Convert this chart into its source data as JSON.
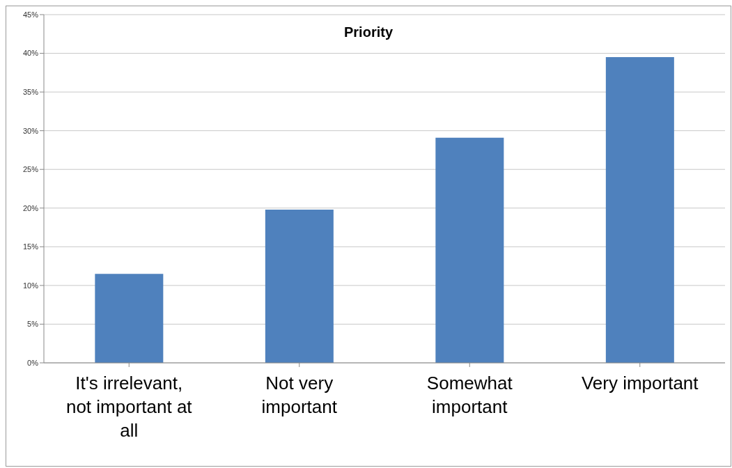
{
  "chart_data": {
    "type": "bar",
    "title": "Priority",
    "categories": [
      "It's irrelevant, not important at all",
      "Not very important",
      "Somewhat important",
      "Very important"
    ],
    "values": [
      11.5,
      19.8,
      29.1,
      39.5
    ],
    "color": "#4f81bd",
    "ylim": [
      0,
      45
    ],
    "yticks": [
      {
        "value": 0,
        "label": "0%"
      },
      {
        "value": 5,
        "label": "5%"
      },
      {
        "value": 10,
        "label": "10%"
      },
      {
        "value": 15,
        "label": "15%"
      },
      {
        "value": 20,
        "label": "20%"
      },
      {
        "value": 25,
        "label": "25%"
      },
      {
        "value": 30,
        "label": "30%"
      },
      {
        "value": 35,
        "label": "35%"
      },
      {
        "value": 40,
        "label": "40%"
      },
      {
        "value": 45,
        "label": "45%"
      }
    ],
    "grid": "y",
    "legend": false
  }
}
